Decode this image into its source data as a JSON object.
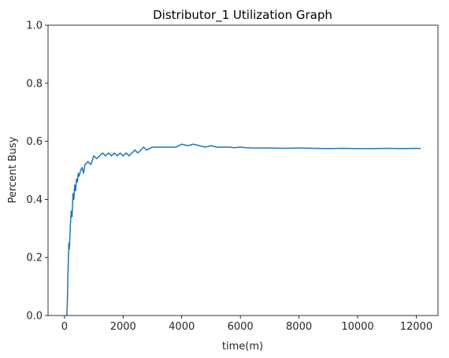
{
  "chart_data": {
    "type": "line",
    "title": "Distributor_1 Utilization Graph",
    "xlabel": "time(m)",
    "ylabel": "Percent Busy",
    "xlim": [
      -560,
      12740
    ],
    "ylim": [
      0,
      1.0
    ],
    "x_ticks": [
      0,
      2000,
      4000,
      6000,
      8000,
      10000,
      12000
    ],
    "y_ticks": [
      0.0,
      0.2,
      0.4,
      0.6,
      0.8,
      1.0
    ],
    "x_tick_labels": [
      "0",
      "2000",
      "4000",
      "6000",
      "8000",
      "10000",
      "12000"
    ],
    "y_tick_labels": [
      "0.0",
      "0.2",
      "0.4",
      "0.6",
      "0.8",
      "1.0"
    ],
    "grid": false,
    "series": [
      {
        "color": "#1f77b4",
        "x": [
          80,
          100,
          120,
          150,
          170,
          200,
          230,
          260,
          290,
          320,
          350,
          380,
          410,
          440,
          470,
          500,
          550,
          600,
          650,
          700,
          800,
          900,
          1000,
          1100,
          1200,
          1300,
          1400,
          1500,
          1600,
          1700,
          1800,
          1900,
          2000,
          2100,
          2200,
          2300,
          2400,
          2500,
          2600,
          2700,
          2800,
          3000,
          3200,
          3400,
          3600,
          3800,
          4000,
          4200,
          4400,
          4600,
          4800,
          5000,
          5200,
          5400,
          5600,
          5800,
          6000,
          6200,
          6500,
          7000,
          7500,
          8000,
          8500,
          9000,
          9500,
          10000,
          10500,
          11000,
          11500,
          12000,
          12150
        ],
        "y": [
          0.0,
          0.05,
          0.15,
          0.25,
          0.23,
          0.31,
          0.36,
          0.34,
          0.42,
          0.4,
          0.45,
          0.43,
          0.47,
          0.46,
          0.49,
          0.48,
          0.5,
          0.51,
          0.49,
          0.52,
          0.53,
          0.52,
          0.55,
          0.54,
          0.55,
          0.56,
          0.55,
          0.56,
          0.55,
          0.56,
          0.55,
          0.56,
          0.55,
          0.56,
          0.55,
          0.56,
          0.57,
          0.56,
          0.57,
          0.58,
          0.57,
          0.58,
          0.58,
          0.58,
          0.58,
          0.58,
          0.59,
          0.585,
          0.59,
          0.585,
          0.58,
          0.585,
          0.58,
          0.58,
          0.58,
          0.578,
          0.58,
          0.578,
          0.577,
          0.577,
          0.576,
          0.577,
          0.576,
          0.575,
          0.576,
          0.575,
          0.575,
          0.576,
          0.575,
          0.576,
          0.575
        ]
      }
    ]
  }
}
